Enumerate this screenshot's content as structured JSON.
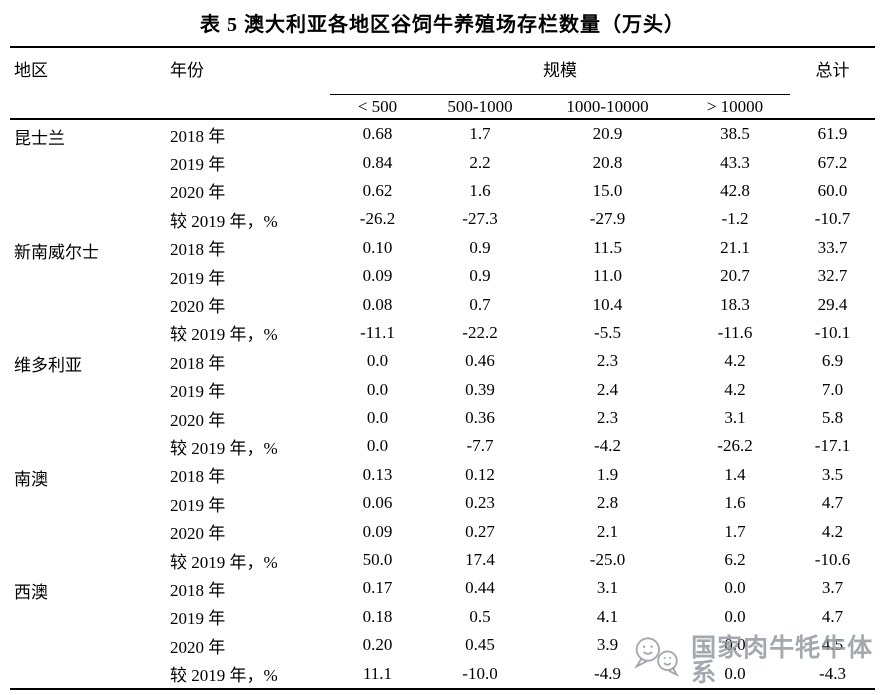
{
  "title": "表 5 澳大利亚各地区谷饲牛养殖场存栏数量（万头）",
  "table": {
    "headers": {
      "region": "地区",
      "year": "年份",
      "scale_group": "规模",
      "total": "总计",
      "scale_columns": [
        "< 500",
        "500-1000",
        "1000-10000",
        "> 10000"
      ]
    },
    "regions": [
      {
        "name": "昆士兰",
        "rows": [
          {
            "year": "2018 年",
            "values": [
              "0.68",
              "1.7",
              "20.9",
              "38.5",
              "61.9"
            ]
          },
          {
            "year": "2019 年",
            "values": [
              "0.84",
              "2.2",
              "20.8",
              "43.3",
              "67.2"
            ]
          },
          {
            "year": "2020 年",
            "values": [
              "0.62",
              "1.6",
              "15.0",
              "42.8",
              "60.0"
            ]
          },
          {
            "year": "较 2019 年，%",
            "values": [
              "-26.2",
              "-27.3",
              "-27.9",
              "-1.2",
              "-10.7"
            ]
          }
        ]
      },
      {
        "name": "新南威尔士",
        "rows": [
          {
            "year": "2018 年",
            "values": [
              "0.10",
              "0.9",
              "11.5",
              "21.1",
              "33.7"
            ]
          },
          {
            "year": "2019 年",
            "values": [
              "0.09",
              "0.9",
              "11.0",
              "20.7",
              "32.7"
            ]
          },
          {
            "year": "2020 年",
            "values": [
              "0.08",
              "0.7",
              "10.4",
              "18.3",
              "29.4"
            ]
          },
          {
            "year": "较 2019 年，%",
            "values": [
              "-11.1",
              "-22.2",
              "-5.5",
              "-11.6",
              "-10.1"
            ]
          }
        ]
      },
      {
        "name": "维多利亚",
        "rows": [
          {
            "year": "2018 年",
            "values": [
              "0.0",
              "0.46",
              "2.3",
              "4.2",
              "6.9"
            ]
          },
          {
            "year": "2019 年",
            "values": [
              "0.0",
              "0.39",
              "2.4",
              "4.2",
              "7.0"
            ]
          },
          {
            "year": "2020 年",
            "values": [
              "0.0",
              "0.36",
              "2.3",
              "3.1",
              "5.8"
            ]
          },
          {
            "year": "较 2019 年，%",
            "values": [
              "0.0",
              "-7.7",
              "-4.2",
              "-26.2",
              "-17.1"
            ]
          }
        ]
      },
      {
        "name": "南澳",
        "rows": [
          {
            "year": "2018 年",
            "values": [
              "0.13",
              "0.12",
              "1.9",
              "1.4",
              "3.5"
            ]
          },
          {
            "year": "2019 年",
            "values": [
              "0.06",
              "0.23",
              "2.8",
              "1.6",
              "4.7"
            ]
          },
          {
            "year": "2020 年",
            "values": [
              "0.09",
              "0.27",
              "2.1",
              "1.7",
              "4.2"
            ]
          },
          {
            "year": "较 2019 年，%",
            "values": [
              "50.0",
              "17.4",
              "-25.0",
              "6.2",
              "-10.6"
            ]
          }
        ]
      },
      {
        "name": "西澳",
        "rows": [
          {
            "year": "2018 年",
            "values": [
              "0.17",
              "0.44",
              "3.1",
              "0.0",
              "3.7"
            ]
          },
          {
            "year": "2019 年",
            "values": [
              "0.18",
              "0.5",
              "4.1",
              "0.0",
              "4.7"
            ]
          },
          {
            "year": "2020 年",
            "values": [
              "0.20",
              "0.45",
              "3.9",
              "0.0",
              "4.5"
            ]
          },
          {
            "year": "较 2019 年，%",
            "values": [
              "11.1",
              "-10.0",
              "-4.9",
              "0.0",
              "-4.3"
            ]
          }
        ]
      }
    ]
  },
  "watermark": {
    "text": "国家肉牛牦牛体系",
    "icon": "chat-bubbles-icon",
    "color": "#949aa1"
  }
}
